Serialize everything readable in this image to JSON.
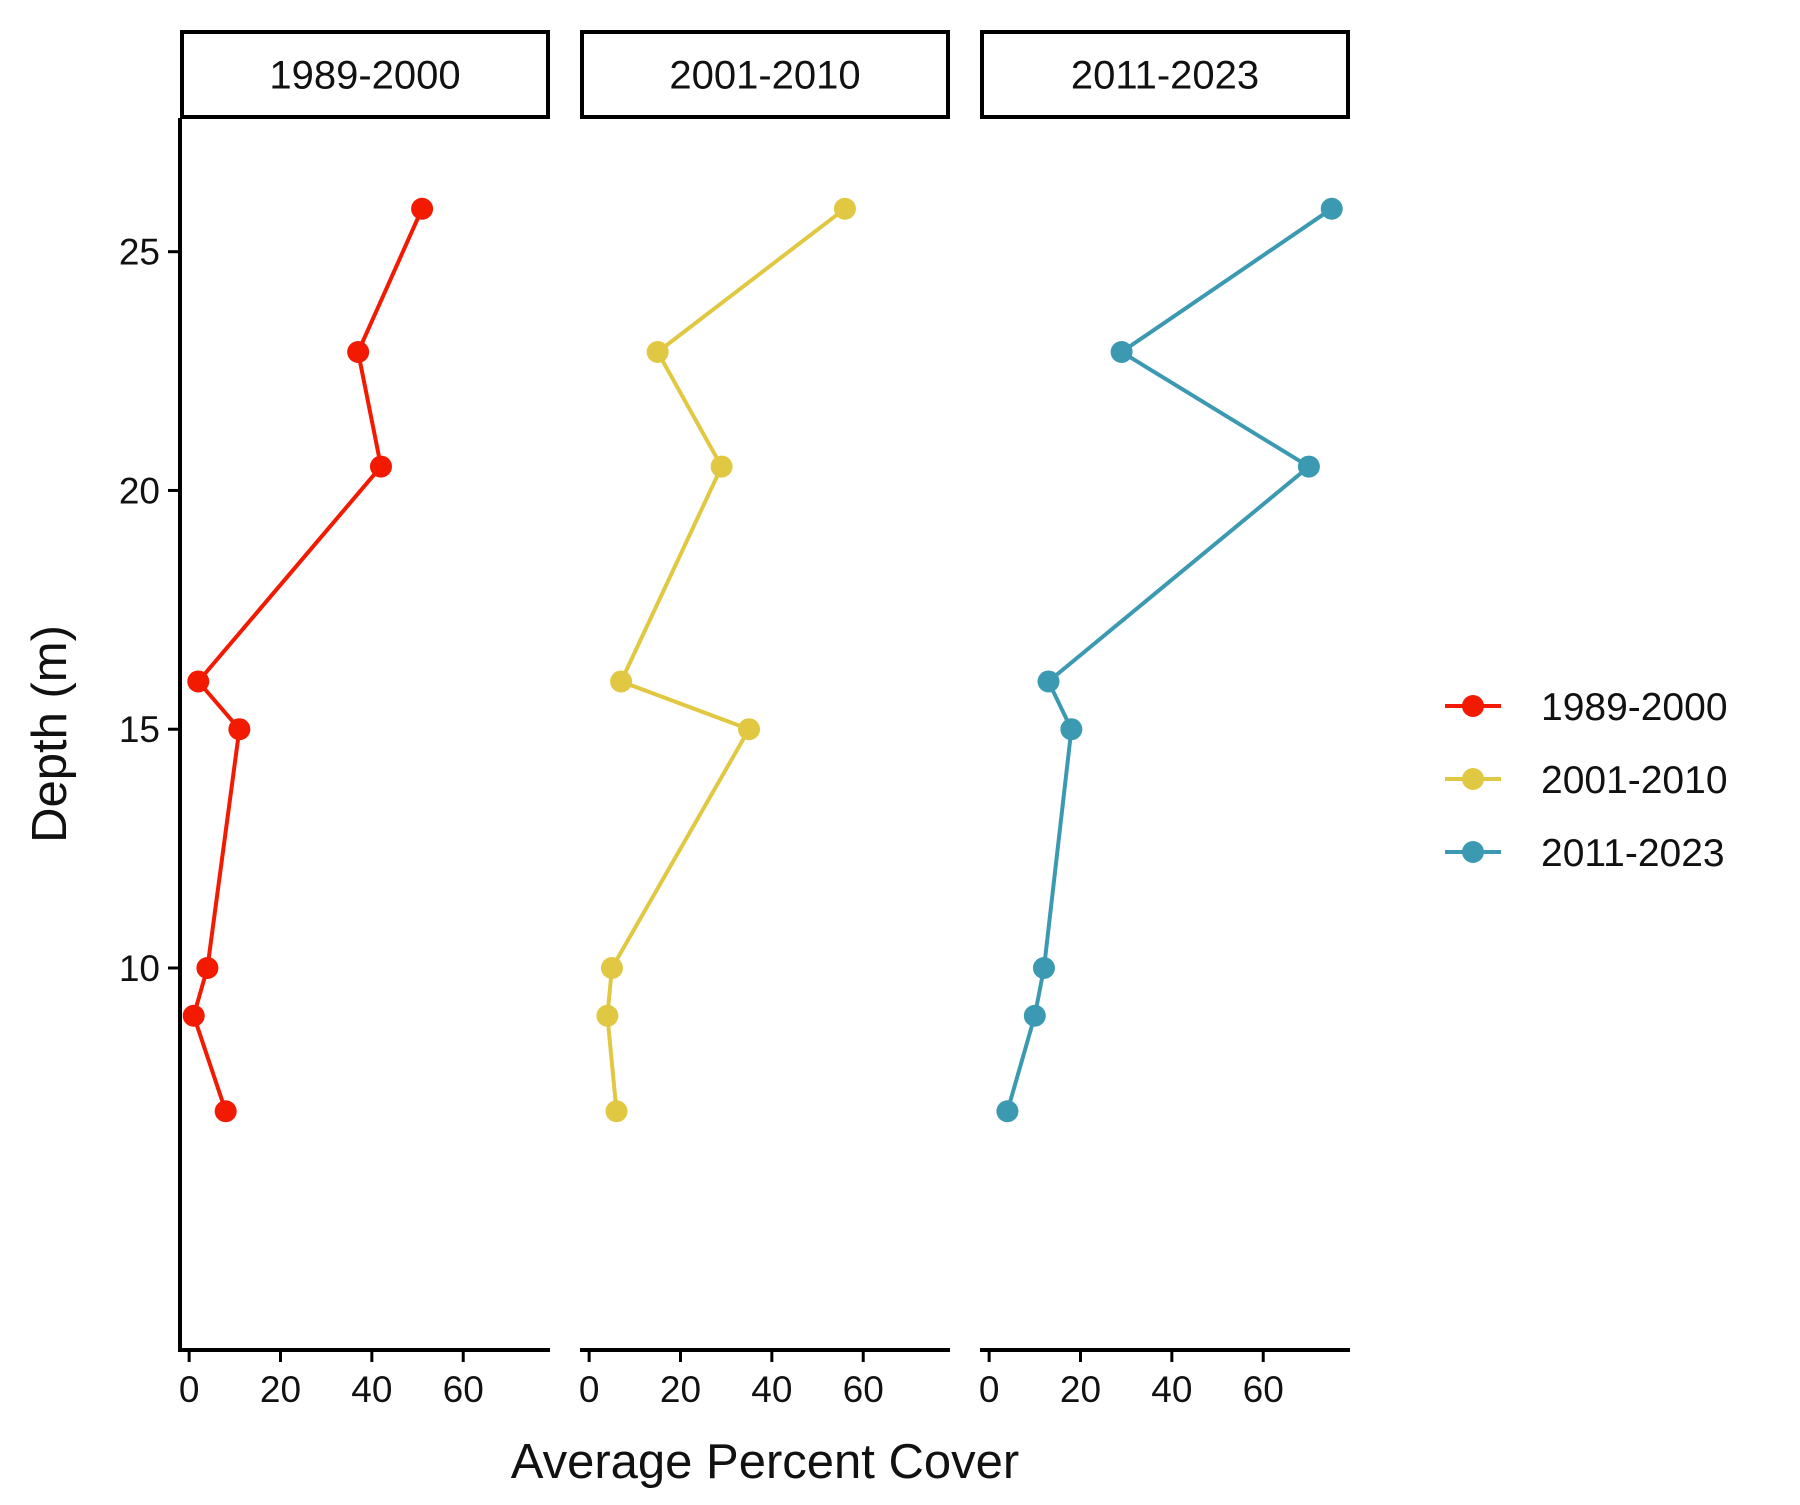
{
  "chart_data": {
    "type": "line",
    "orientation": "vertical-profile",
    "xlabel": "Average Percent Cover",
    "ylabel": "Depth (m)",
    "xlim": [
      -2,
      79
    ],
    "ylim": [
      27.8,
      2.0
    ],
    "x_ticks": [
      0,
      20,
      40,
      60
    ],
    "x_tick_labels": [
      "0",
      "20",
      "40",
      "60"
    ],
    "y_ticks": [
      10,
      15,
      20,
      25
    ],
    "y_tick_labels": [
      "10",
      "15",
      "20",
      "25"
    ],
    "y_reversed": true,
    "grid": false,
    "legend_position": "right",
    "facets": [
      "1989-2000",
      "2001-2010",
      "2011-2023"
    ],
    "series": [
      {
        "name": "1989-2000",
        "color": "#F21A00",
        "points": [
          {
            "cover": 8,
            "depth": 7
          },
          {
            "cover": 1,
            "depth": 9
          },
          {
            "cover": 4,
            "depth": 10
          },
          {
            "cover": 11,
            "depth": 15
          },
          {
            "cover": 2,
            "depth": 16
          },
          {
            "cover": 42,
            "depth": 20.5
          },
          {
            "cover": 37,
            "depth": 22.9
          },
          {
            "cover": 51,
            "depth": 25.9
          }
        ]
      },
      {
        "name": "2001-2010",
        "color": "#E1C843",
        "points": [
          {
            "cover": 6,
            "depth": 7
          },
          {
            "cover": 4,
            "depth": 9
          },
          {
            "cover": 5,
            "depth": 10
          },
          {
            "cover": 35,
            "depth": 15
          },
          {
            "cover": 7,
            "depth": 16
          },
          {
            "cover": 29,
            "depth": 20.5
          },
          {
            "cover": 15,
            "depth": 22.9
          },
          {
            "cover": 56,
            "depth": 25.9
          }
        ]
      },
      {
        "name": "2011-2023",
        "color": "#3B9AB2",
        "points": [
          {
            "cover": 4,
            "depth": 7
          },
          {
            "cover": 10,
            "depth": 9
          },
          {
            "cover": 12,
            "depth": 10
          },
          {
            "cover": 18,
            "depth": 15
          },
          {
            "cover": 13,
            "depth": 16
          },
          {
            "cover": 70,
            "depth": 20.5
          },
          {
            "cover": 29,
            "depth": 22.9
          },
          {
            "cover": 75,
            "depth": 25.9
          }
        ]
      }
    ]
  }
}
